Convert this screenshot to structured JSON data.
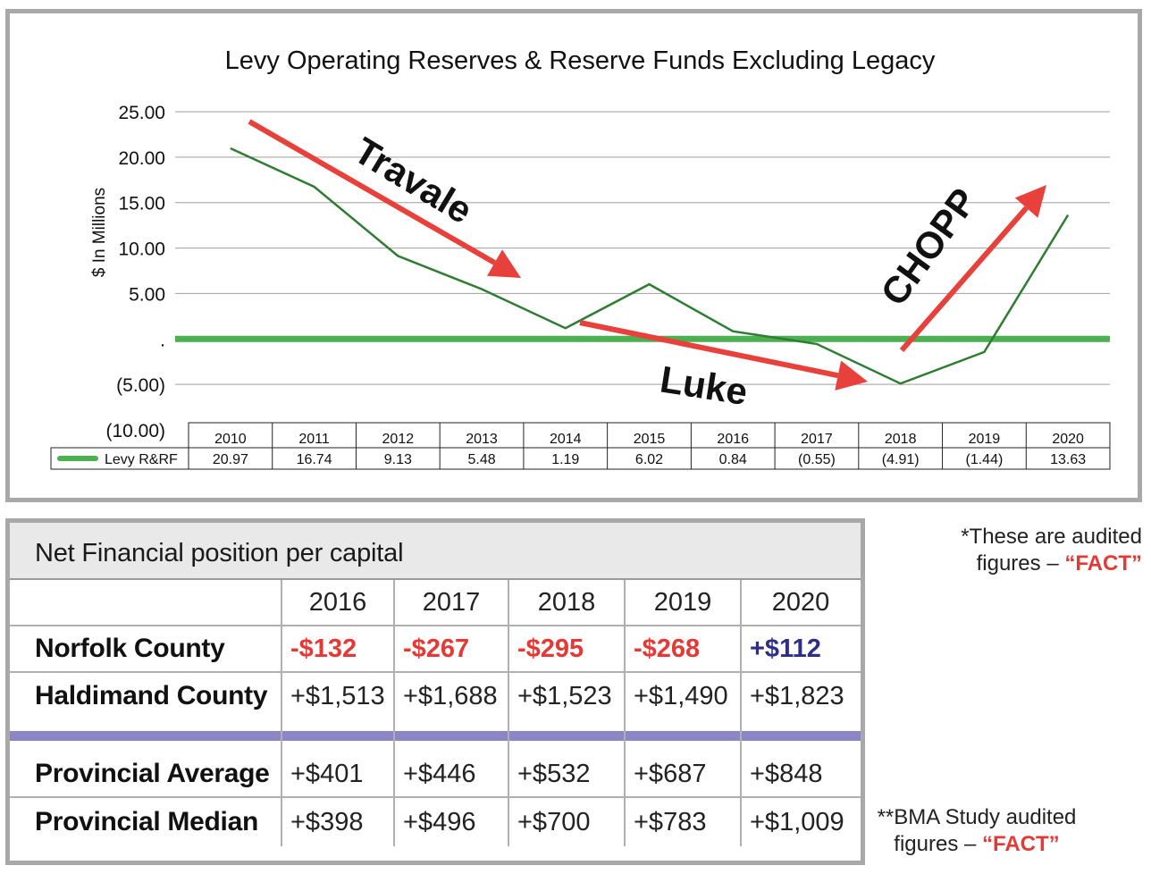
{
  "chart_data": {
    "type": "line",
    "title": "Levy Operating Reserves & Reserve Funds Excluding Legacy",
    "ylabel": "$ In Millions",
    "ylim": [
      -10,
      25
    ],
    "yticks": [
      25,
      20,
      15,
      10,
      5,
      0,
      -5,
      -10
    ],
    "ytick_labels": [
      "25.00",
      "20.00",
      "15.00",
      "10.00",
      "5.00",
      ".",
      "(5.00)",
      "(10.00)"
    ],
    "grid": true,
    "categories": [
      "2010",
      "2011",
      "2012",
      "2013",
      "2014",
      "2015",
      "2016",
      "2017",
      "2018",
      "2019",
      "2020"
    ],
    "series": [
      {
        "name": "Levy R&RF",
        "values": [
          20.97,
          16.74,
          9.13,
          5.48,
          1.19,
          6.02,
          0.84,
          -0.55,
          -4.91,
          -1.44,
          13.63
        ],
        "value_labels": [
          "20.97",
          "16.74",
          "9.13",
          "5.48",
          "1.19",
          "6.02",
          "0.84",
          "(0.55)",
          "(4.91)",
          "(1.44)",
          "13.63"
        ],
        "color": "#2f7d32"
      }
    ],
    "zero_line_color": "#4caf50",
    "annotations": [
      {
        "text": "Travale",
        "color": "#e8403a",
        "trend": "down",
        "from_year": "2010",
        "to_year": "2014"
      },
      {
        "text": "Luke",
        "color": "#e8403a",
        "trend": "down",
        "from_year": "2014",
        "to_year": "2018"
      },
      {
        "text": "CHOPP",
        "color": "#e8403a",
        "trend": "up",
        "from_year": "2018",
        "to_year": "2020"
      }
    ]
  },
  "financial_table": {
    "title": "Net Financial position per capital",
    "years": [
      "2016",
      "2017",
      "2018",
      "2019",
      "2020"
    ],
    "rows": [
      {
        "label": "Norfolk County",
        "values": [
          "-$132",
          "-$267",
          "-$295",
          "-$268",
          "+$112"
        ],
        "styles": [
          "neg",
          "neg",
          "neg",
          "neg",
          "pos-hl"
        ]
      },
      {
        "label": "Haldimand County",
        "values": [
          "+$1,513",
          "+$1,688",
          "+$1,523",
          "+$1,490",
          "+$1,823"
        ],
        "styles": [
          "",
          "",
          "",
          "",
          ""
        ]
      },
      {
        "label": "Provincial Average",
        "values": [
          "+$401",
          "+$446",
          "+$532",
          "+$687",
          "+$848"
        ],
        "styles": [
          "",
          "",
          "",
          "",
          ""
        ]
      },
      {
        "label": "Provincial Median",
        "values": [
          "+$398",
          "+$496",
          "+$700",
          "+$783",
          "+$1,009"
        ],
        "styles": [
          "",
          "",
          "",
          "",
          ""
        ]
      }
    ],
    "separator_color": "#8c86c4",
    "negative_color": "#e53935",
    "positive_highlight_color": "#2e2e8a"
  },
  "notes": {
    "audited": {
      "line1": "*These are audited",
      "line2_prefix": "figures – ",
      "fact": "“FACT”"
    },
    "bma": {
      "line1": "**BMA Study audited",
      "line2_prefix": "figures – ",
      "fact": "“FACT”"
    }
  }
}
